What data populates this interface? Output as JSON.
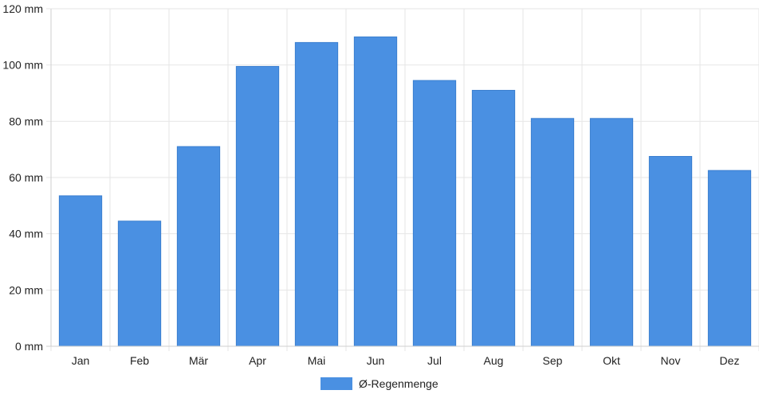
{
  "chart_data": {
    "type": "bar",
    "title": "",
    "xlabel": "",
    "ylabel": "",
    "categories": [
      "Jan",
      "Feb",
      "Mär",
      "Apr",
      "Mai",
      "Jun",
      "Jul",
      "Aug",
      "Sep",
      "Okt",
      "Nov",
      "Dez"
    ],
    "series": [
      {
        "name": "Ø-Regenmenge",
        "values": [
          53.5,
          44.5,
          71,
          99.5,
          108,
          110,
          94.5,
          91,
          81,
          81,
          67.5,
          62.5
        ],
        "color": "#4a90e2"
      }
    ],
    "ylim": [
      0,
      120
    ],
    "yticks": [
      0,
      20,
      40,
      60,
      80,
      100,
      120
    ],
    "ytick_labels": [
      "0 mm",
      "20 mm",
      "40 mm",
      "60 mm",
      "80 mm",
      "100 mm",
      "120 mm"
    ],
    "grid": true,
    "legend_position": "bottom-center"
  }
}
